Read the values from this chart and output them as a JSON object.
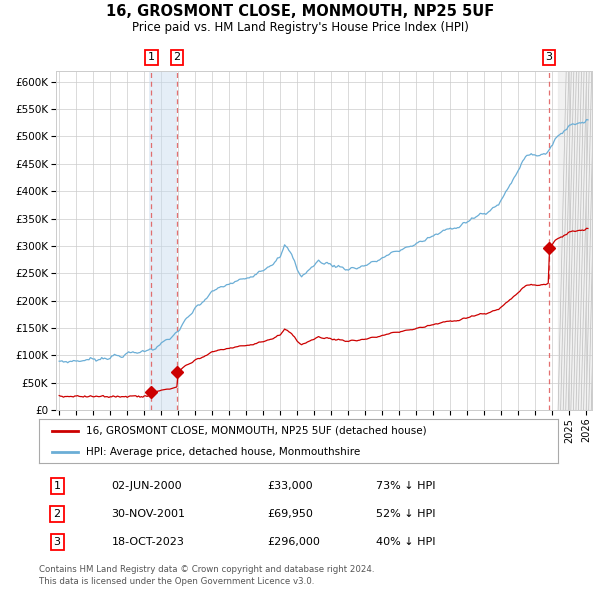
{
  "title": "16, GROSMONT CLOSE, MONMOUTH, NP25 5UF",
  "subtitle": "Price paid vs. HM Land Registry's House Price Index (HPI)",
  "footer1": "Contains HM Land Registry data © Crown copyright and database right 2024.",
  "footer2": "This data is licensed under the Open Government Licence v3.0.",
  "legend_line1": "16, GROSMONT CLOSE, MONMOUTH, NP25 5UF (detached house)",
  "legend_line2": "HPI: Average price, detached house, Monmouthshire",
  "transactions": [
    {
      "num": 1,
      "date": "02-JUN-2000",
      "price": 33000,
      "hpi_pct": "73% ↓ HPI",
      "x": 2000.42
    },
    {
      "num": 2,
      "date": "30-NOV-2001",
      "price": 69950,
      "hpi_pct": "52% ↓ HPI",
      "x": 2001.92
    },
    {
      "num": 3,
      "date": "18-OCT-2023",
      "price": 296000,
      "hpi_pct": "40% ↓ HPI",
      "x": 2023.79
    }
  ],
  "hpi_color": "#6baed6",
  "price_color": "#cc0000",
  "vline_blue_start": 2000.25,
  "vline_blue_end": 2001.92,
  "vline_red1": 2000.42,
  "vline_red2": 2001.92,
  "vline_red3": 2023.79,
  "hatch_start": 2024.33,
  "ylim": [
    0,
    620000
  ],
  "xlim": [
    1994.8,
    2026.3
  ],
  "background_color": "#ffffff",
  "grid_color": "#cccccc"
}
